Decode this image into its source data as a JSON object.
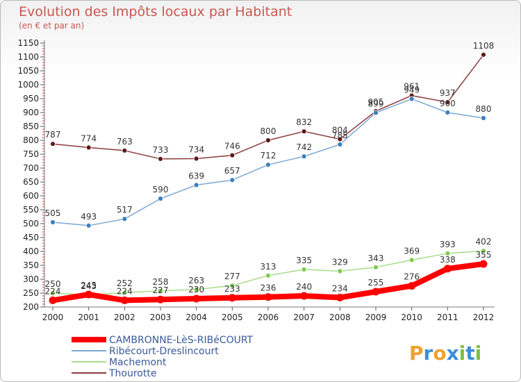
{
  "chart_data": {
    "type": "line",
    "title": "Evolution des Impôts locaux par Habitant",
    "subtitle": "(en € et par an)",
    "xlabel": "",
    "ylabel": "",
    "x": [
      "2000",
      "2001",
      "2002",
      "2003",
      "2004",
      "2005",
      "2006",
      "2007",
      "2008",
      "2009",
      "2010",
      "2011",
      "2012"
    ],
    "ylim": [
      200,
      1150
    ],
    "yticks": [
      200,
      250,
      300,
      350,
      400,
      450,
      500,
      550,
      600,
      650,
      700,
      750,
      800,
      850,
      900,
      950,
      1000,
      1050,
      1100,
      1150
    ],
    "grid": false,
    "legend_position": "bottom-left",
    "series": [
      {
        "name": "CAMBRONNE-LèS-RIBéCOURT",
        "color": "#ff0000",
        "marker": "#ff0000",
        "width": 8,
        "values": [
          224,
          245,
          224,
          227,
          230,
          233,
          236,
          240,
          234,
          255,
          276,
          338,
          355
        ]
      },
      {
        "name": "Ribécourt-Dreslincourt",
        "color": "#7ba7d3",
        "marker": "#3b7fc0",
        "width": 1.5,
        "values": [
          505,
          493,
          517,
          590,
          639,
          657,
          712,
          742,
          785,
          899,
          949,
          900,
          880
        ]
      },
      {
        "name": "Machemont",
        "color": "#a8dc8a",
        "marker": "#7ccc50",
        "width": 1.5,
        "values": [
          250,
          243,
          252,
          258,
          263,
          277,
          313,
          335,
          329,
          343,
          369,
          393,
          402
        ]
      },
      {
        "name": "Thourotte",
        "color": "#8a3a3a",
        "marker": "#5c1a1a",
        "width": 1.5,
        "values": [
          787,
          774,
          763,
          733,
          734,
          746,
          800,
          832,
          804,
          905,
          961,
          937,
          1108
        ]
      }
    ],
    "data_labels": [
      [
        "224",
        "245",
        "224",
        "227",
        "230",
        "233",
        "236",
        "240",
        "234",
        "255",
        "276",
        "338",
        "355"
      ],
      [
        "505",
        "493",
        "517",
        "590",
        "639",
        "657",
        "712",
        "742",
        "785",
        "899",
        "949",
        "900",
        "880"
      ],
      [
        "250",
        "243",
        "252",
        "258",
        "263",
        "277",
        "313",
        "335",
        "329",
        "343",
        "369",
        "393",
        "402"
      ],
      [
        "787",
        "774",
        "763",
        "733",
        "734",
        "746",
        "800",
        "832",
        "804",
        "905",
        "961",
        "937",
        "1108"
      ]
    ]
  },
  "brand": {
    "logo_letters": [
      "P",
      "r",
      "o",
      "x",
      "i",
      "t",
      "i"
    ],
    "logo_colors": [
      "#f0a030",
      "#3a8fd8",
      "#f0a030",
      "#3a8fd8",
      "#7cc040",
      "#3a8fd8",
      "#7cc040"
    ]
  }
}
